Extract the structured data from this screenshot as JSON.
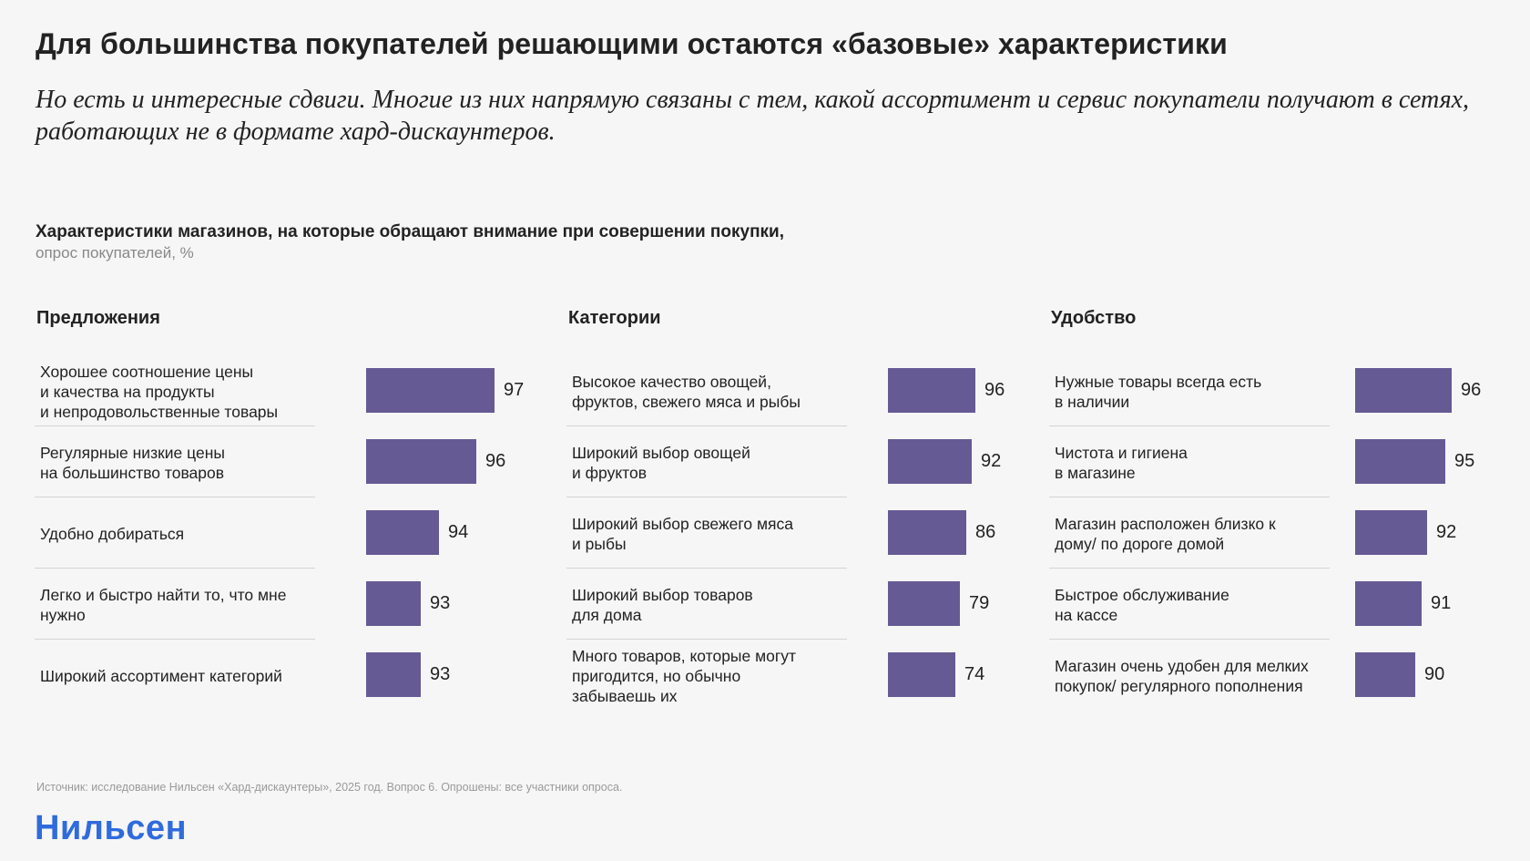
{
  "header": {
    "title": "Для большинства покупателей решающими остаются «базовые» характеристики",
    "subtitle": "Но есть и интересные сдвиги. Многие из них напрямую связаны с тем, какой ассортимент и сервис покупатели получают в сетях, работающих не в формате хард-дискаунтеров."
  },
  "chart_heading": {
    "title": "Характеристики магазинов, на которые обращают внимание при совершении покупки,",
    "subtitle": "опрос покупателей, %"
  },
  "colors": {
    "bar": "#665a94",
    "logo": "#2f6bdc"
  },
  "chart_data": [
    {
      "type": "bar",
      "title": "Предложения",
      "categories": [
        "Хорошее соотношение цены\nи качества на продукты\nи непродовольственные товары",
        "Регулярные низкие цены\nна большинство товаров",
        "Удобно добираться",
        "Легко и быстро найти то, что мне\nнужно",
        "Широкий ассортимент категорий"
      ],
      "values": [
        97,
        96,
        94,
        93,
        93
      ]
    },
    {
      "type": "bar",
      "title": "Категории",
      "categories": [
        "Высокое качество овощей,\nфруктов, свежего мяса и рыбы",
        "Широкий выбор овощей\nи фруктов",
        "Широкий выбор свежего мяса\nи рыбы",
        "Широкий выбор товаров\nдля дома",
        "Много товаров, которые могут\nпригодится, но обычно\nзабываешь их"
      ],
      "values": [
        96,
        92,
        86,
        79,
        74
      ]
    },
    {
      "type": "bar",
      "title": "Удобство",
      "categories": [
        "Нужные товары всегда есть\nв наличии",
        "Чистота и гигиена\nв магазине",
        "Магазин расположен близко к\nдому/ по дороге домой",
        "Быстрое обслуживание\nна кассе",
        "Магазин очень удобен для мелких\nпокупок/ регулярного пополнения"
      ],
      "values": [
        96,
        95,
        92,
        91,
        90
      ]
    }
  ],
  "footer": {
    "source": "Источник: исследование Нильсен «Хард-дискаунтеры», 2025 год. Вопрос 6. Опрошены: все участники опроса.",
    "logo": "Нильсен"
  }
}
